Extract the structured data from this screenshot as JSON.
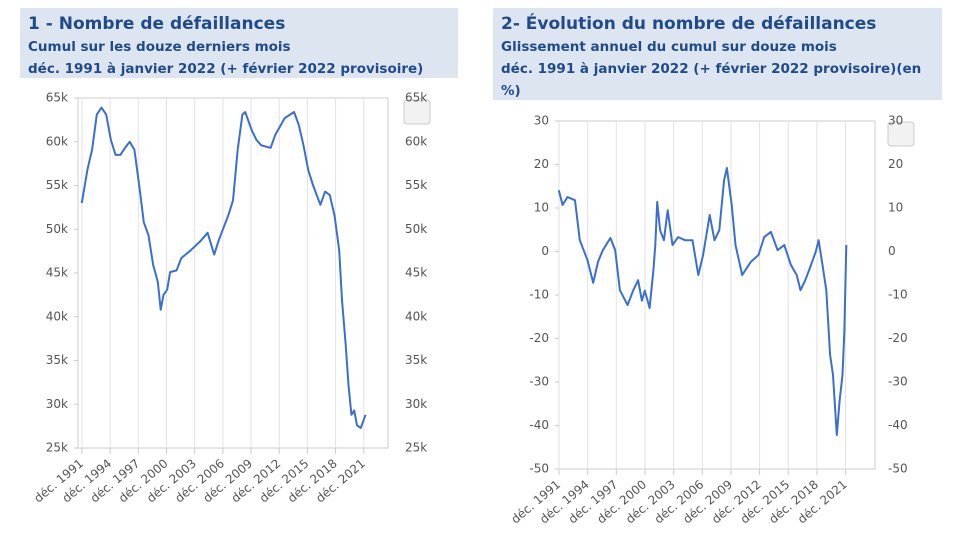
{
  "chart_data": [
    {
      "type": "line",
      "title": "1 - Nombre de défaillances",
      "subtitle": "Cumul sur les douze derniers mois",
      "period": "déc. 1991 à janvier 2022 (+ février 2022 provisoire)",
      "color": "#3a6fd0",
      "xgrid": true,
      "x": [
        1991.9,
        1992.5,
        1993.0,
        1993.5,
        1994.0,
        1994.5,
        1995.0,
        1995.5,
        1996.0,
        1996.5,
        1997.0,
        1997.5,
        1998.0,
        1998.5,
        1999.0,
        1999.5,
        2000.0,
        2000.3,
        2000.6,
        2001.0,
        2001.3,
        2002.0,
        2002.5,
        2003.5,
        2004.5,
        2005.3,
        2006.0,
        2006.5,
        2007.5,
        2008.0,
        2008.5,
        2009.0,
        2009.3,
        2010.0,
        2010.5,
        2011.0,
        2012.0,
        2012.5,
        2013.5,
        2014.5,
        2015.0,
        2015.5,
        2016.0,
        2016.5,
        2017.3,
        2017.8,
        2018.3,
        2018.8,
        2019.3,
        2019.6,
        2020.0,
        2020.3,
        2020.6,
        2020.9,
        2021.2,
        2021.6,
        2022.1
      ],
      "values": [
        53000,
        56800,
        59100,
        63100,
        63900,
        63100,
        60200,
        58500,
        58500,
        59300,
        60000,
        59100,
        55100,
        50800,
        49300,
        45900,
        44000,
        40800,
        42500,
        43100,
        45100,
        45300,
        46700,
        47600,
        48600,
        49600,
        47100,
        48800,
        51600,
        53300,
        59100,
        63100,
        63400,
        61300,
        60200,
        59600,
        59300,
        60800,
        62700,
        63400,
        61900,
        59600,
        56800,
        55100,
        52800,
        54300,
        53900,
        51600,
        47600,
        41900,
        36800,
        32200,
        28800,
        29300,
        27600,
        27300,
        28800
      ],
      "xlim": [
        1991.5,
        2024.5
      ],
      "xticks": [
        {
          "value": 1991.92,
          "label": "déc. 1991"
        },
        {
          "value": 1994.92,
          "label": "déc. 1994"
        },
        {
          "value": 1997.92,
          "label": "déc. 1997"
        },
        {
          "value": 2000.92,
          "label": "déc. 2000"
        },
        {
          "value": 2003.92,
          "label": "déc. 2003"
        },
        {
          "value": 2006.92,
          "label": "déc. 2006"
        },
        {
          "value": 2009.92,
          "label": "déc. 2009"
        },
        {
          "value": 2012.92,
          "label": "déc. 2012"
        },
        {
          "value": 2015.92,
          "label": "déc. 2015"
        },
        {
          "value": 2018.92,
          "label": "déc. 2018"
        },
        {
          "value": 2021.92,
          "label": "déc. 2021"
        }
      ],
      "ylim": [
        25000,
        65000
      ],
      "yticks": [
        {
          "value": 25000,
          "label": "25k"
        },
        {
          "value": 30000,
          "label": "30k"
        },
        {
          "value": 35000,
          "label": "35k"
        },
        {
          "value": 40000,
          "label": "40k"
        },
        {
          "value": 45000,
          "label": "45k"
        },
        {
          "value": 50000,
          "label": "50k"
        },
        {
          "value": 55000,
          "label": "55k"
        },
        {
          "value": 60000,
          "label": "60k"
        },
        {
          "value": 65000,
          "label": "65k"
        }
      ]
    },
    {
      "type": "line",
      "title": "2- Évolution du nombre de défaillances",
      "subtitle": "Glissement annuel du cumul sur douze mois",
      "period": "déc. 1991 à janvier 2022 (+ février 2022 provisoire)(en %)",
      "color": "#3a6fd0",
      "xgrid": true,
      "x": [
        1991.9,
        1992.3,
        1992.8,
        1993.6,
        1994.1,
        1994.9,
        1995.5,
        1996.0,
        1996.5,
        1997.3,
        1997.8,
        1998.3,
        1999.1,
        1999.7,
        2000.2,
        2000.6,
        2000.9,
        2001.4,
        2001.8,
        2002.0,
        2002.2,
        2002.5,
        2002.9,
        2003.3,
        2003.8,
        2004.4,
        2005.1,
        2005.9,
        2006.5,
        2007.0,
        2007.7,
        2008.2,
        2008.7,
        2009.2,
        2009.5,
        2010.0,
        2010.4,
        2011.1,
        2012.0,
        2012.8,
        2013.4,
        2014.1,
        2014.8,
        2015.5,
        2016.2,
        2016.8,
        2017.2,
        2017.7,
        2018.3,
        2018.8,
        2019.1,
        2019.5,
        2019.9,
        2020.3,
        2020.6,
        2021.0,
        2021.3,
        2021.6,
        2021.8,
        2022.0
      ],
      "values": [
        14.1,
        10.7,
        12.5,
        11.8,
        2.6,
        -2,
        -7.2,
        -2.4,
        0.3,
        3.1,
        0.3,
        -8.9,
        -12.3,
        -8.9,
        -6.6,
        -11.3,
        -9,
        -13,
        -4.3,
        1.5,
        11.4,
        4.9,
        2.6,
        9.5,
        1.5,
        3.3,
        2.6,
        2.6,
        -5.4,
        -0.8,
        8.4,
        2.6,
        4.9,
        16.4,
        19.2,
        10.7,
        1.5,
        -5.4,
        -2.4,
        -0.8,
        3.3,
        4.5,
        0.3,
        1.5,
        -3.1,
        -5.4,
        -8.9,
        -6.6,
        -3.1,
        0,
        2.6,
        -3.1,
        -8.9,
        -23.8,
        -28.4,
        -42.2,
        -34.1,
        -28.4,
        -18,
        1.5
      ],
      "xlim": [
        1991.92,
        2025.0
      ],
      "xticks": [
        {
          "value": 1991.92,
          "label": "déc. 1991"
        },
        {
          "value": 1994.92,
          "label": "déc. 1994"
        },
        {
          "value": 1997.92,
          "label": "déc. 1997"
        },
        {
          "value": 2000.92,
          "label": "déc. 2000"
        },
        {
          "value": 2003.92,
          "label": "déc. 2003"
        },
        {
          "value": 2006.92,
          "label": "déc. 2006"
        },
        {
          "value": 2009.92,
          "label": "déc. 2009"
        },
        {
          "value": 2012.92,
          "label": "déc. 2012"
        },
        {
          "value": 2015.92,
          "label": "déc. 2015"
        },
        {
          "value": 2018.92,
          "label": "déc. 2018"
        },
        {
          "value": 2021.92,
          "label": "déc. 2021"
        }
      ],
      "ylim": [
        -50,
        30
      ],
      "yticks": [
        -50,
        -40,
        -30,
        -20,
        -10,
        0,
        10,
        20,
        30
      ]
    }
  ]
}
